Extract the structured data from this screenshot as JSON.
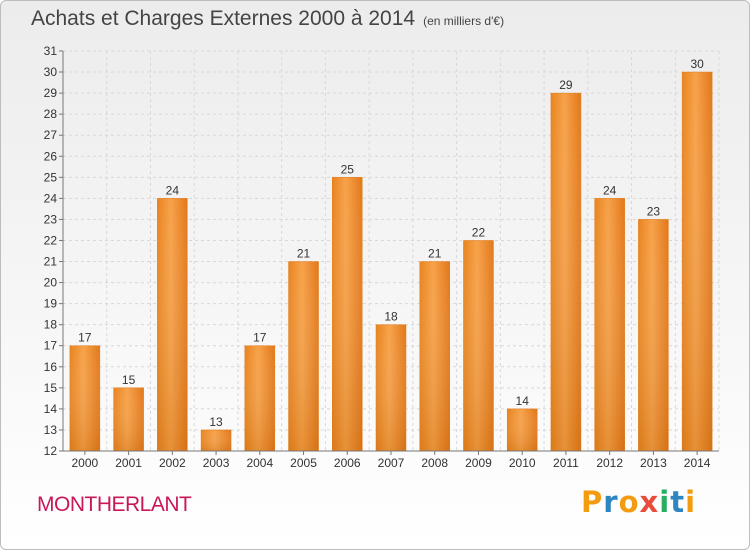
{
  "header": {
    "title": "Achats et Charges Externes 2000 à 2014",
    "subtitle": "(en milliers d'€)"
  },
  "footer": {
    "town": "MONTHERLANT",
    "logo_letters": [
      "P",
      "r",
      "o",
      "x",
      "i",
      "t",
      "i"
    ],
    "logo_colors": [
      "#f39c12",
      "#2e86c1",
      "#f39c12",
      "#e74c3c",
      "#27ae60",
      "#2e86c1",
      "#f39c12"
    ]
  },
  "colors": {
    "bar": "#f39c3c",
    "bar_dark": "#e07c1c",
    "grid": "#d8d8d8",
    "axis": "#777777",
    "text": "#333333"
  },
  "chart_data": {
    "type": "bar",
    "title": "Achats et Charges Externes 2000 à 2014",
    "subtitle": "(en milliers d'€)",
    "categories": [
      "2000",
      "2001",
      "2002",
      "2003",
      "2004",
      "2005",
      "2006",
      "2007",
      "2008",
      "2009",
      "2010",
      "2011",
      "2012",
      "2013",
      "2014"
    ],
    "values": [
      17,
      15,
      24,
      13,
      17,
      21,
      25,
      18,
      21,
      22,
      14,
      29,
      24,
      23,
      30
    ],
    "ylim": [
      12,
      31
    ],
    "yticks": [
      12,
      13,
      14,
      15,
      16,
      17,
      18,
      19,
      20,
      21,
      22,
      23,
      24,
      25,
      26,
      27,
      28,
      29,
      30,
      31
    ],
    "grid": true,
    "data_labels": true
  }
}
